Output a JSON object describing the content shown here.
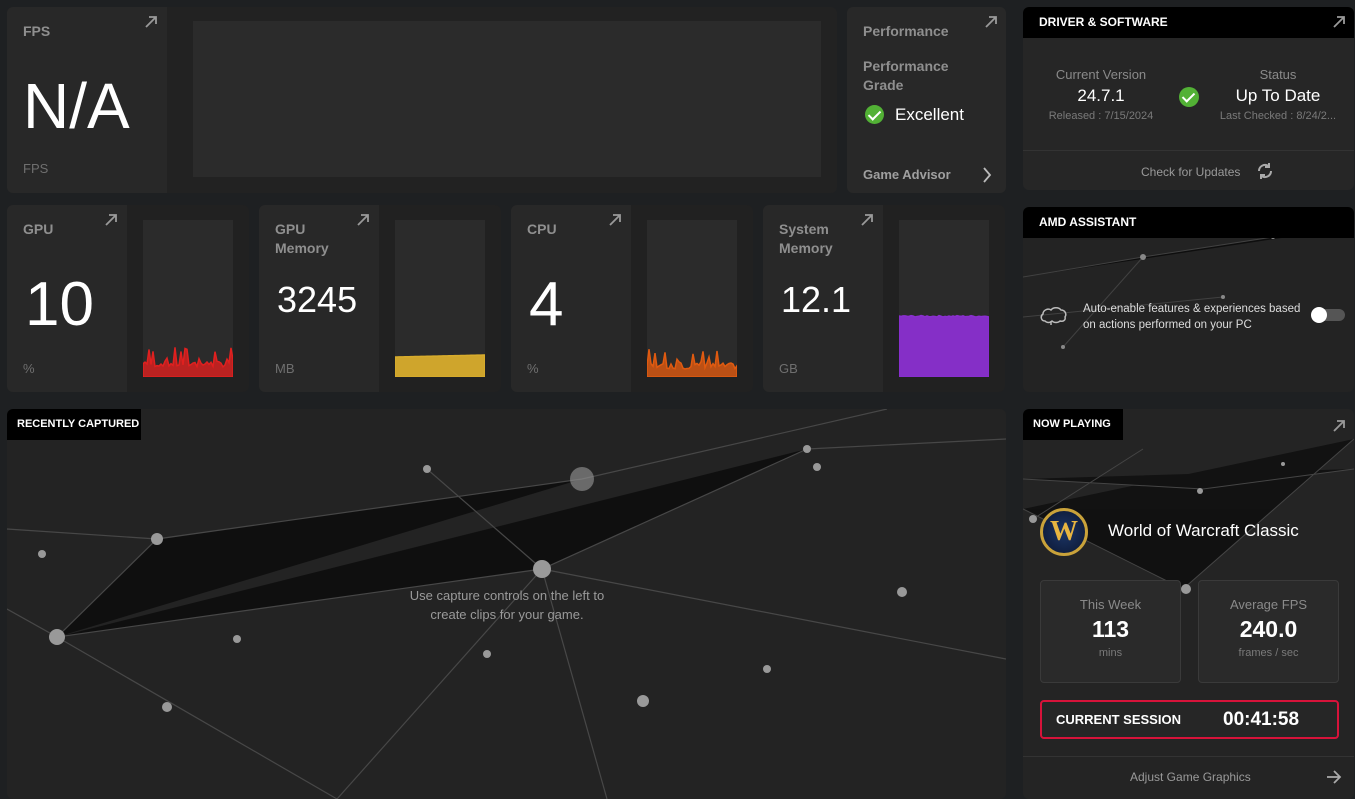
{
  "fps_card": {
    "label": "FPS",
    "value": "N/A",
    "unit": "FPS"
  },
  "performance": {
    "title": "Performance",
    "grade_label": "Performance Grade",
    "grade": "Excellent",
    "advisor": "Game Advisor"
  },
  "metrics": [
    {
      "label": "GPU",
      "value": "10",
      "unit": "%",
      "color": "#e0201f"
    },
    {
      "label": "GPU Memory",
      "value": "3245",
      "unit": "MB",
      "color": "#d8ac2c"
    },
    {
      "label": "CPU",
      "value": "4",
      "unit": "%",
      "color": "#e05a10"
    },
    {
      "label": "System Memory",
      "value": "12.1",
      "unit": "GB",
      "color": "#8a2fd0"
    }
  ],
  "driver": {
    "header": "DRIVER & SOFTWARE",
    "version_label": "Current Version",
    "version": "24.7.1",
    "released": "Released : 7/15/2024",
    "status_label": "Status",
    "status": "Up To Date",
    "last_checked": "Last Checked : 8/24/2...",
    "check_updates": "Check for Updates"
  },
  "assistant": {
    "header": "AMD ASSISTANT",
    "text": "Auto-enable features & experiences based on actions performed on your PC",
    "toggle_on": false
  },
  "captured": {
    "header": "RECENTLY CAPTURED",
    "message": "Use capture controls on the left to create clips for your game."
  },
  "now_playing": {
    "header": "NOW PLAYING",
    "game": "World of Warcraft Classic",
    "icon_letter": "W",
    "week_label": "This Week",
    "week_value": "113",
    "week_unit": "mins",
    "fps_label": "Average FPS",
    "fps_value": "240.0",
    "fps_unit": "frames / sec",
    "session_label": "CURRENT SESSION",
    "session_time": "00:41:58",
    "adjust": "Adjust Game Graphics"
  }
}
